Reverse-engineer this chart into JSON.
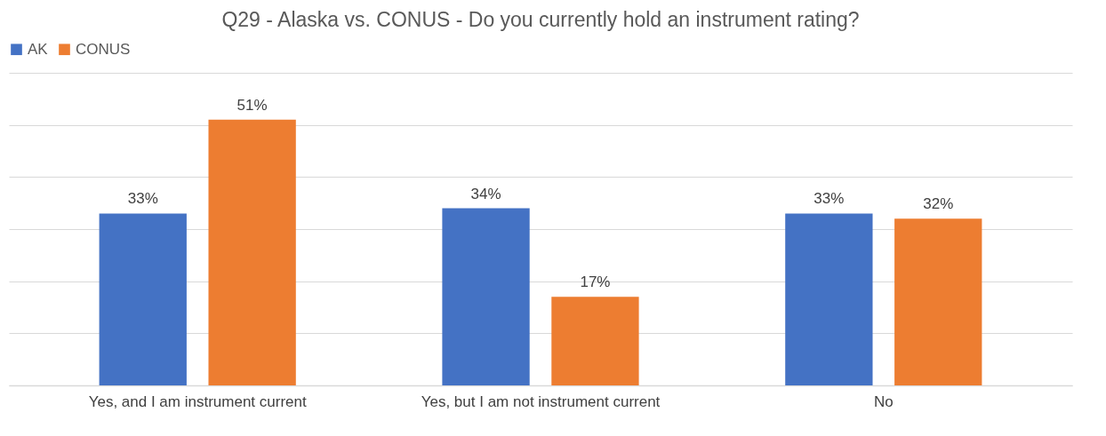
{
  "chart_data": {
    "type": "bar",
    "title": "Q29 - Alaska vs. CONUS - Do you currently hold an instrument rating?",
    "categories": [
      "Yes, and I am instrument current",
      "Yes, but I am not instrument current",
      "No"
    ],
    "series": [
      {
        "name": "AK",
        "color": "#4472c4",
        "values": [
          33,
          34,
          33
        ],
        "value_labels": [
          "33%",
          "34%",
          "33%"
        ]
      },
      {
        "name": "CONUS",
        "color": "#ed7d31",
        "values": [
          51,
          17,
          32
        ],
        "value_labels": [
          "51%",
          "17%",
          "32%"
        ]
      }
    ],
    "ylim": [
      0,
      60
    ],
    "yticks": [
      0,
      10,
      20,
      30,
      40,
      50,
      60
    ],
    "tick_labels": "x",
    "grid": "y",
    "legend": "top"
  }
}
